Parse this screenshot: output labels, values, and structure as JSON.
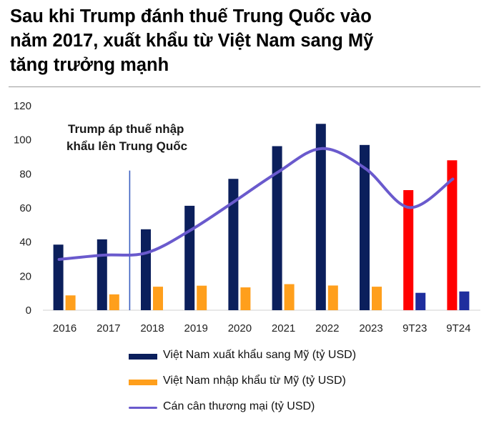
{
  "title_lines": [
    "Sau khi Trump đánh thuế Trung Quốc vào",
    "năm 2017, xuất khẩu từ Việt Nam sang Mỹ",
    "tăng trưởng mạnh"
  ],
  "annotation_lines": [
    "Trump áp thuế nhập",
    "khẩu lên Trung Quốc"
  ],
  "legend": [
    "Việt Nam xuất khẩu sang Mỹ (tỷ USD)",
    "Việt Nam nhập khẩu từ Mỹ (tỷ USD)",
    "Cán cân thương mại (tỷ USD)"
  ],
  "colors": {
    "export": "#0b1f5c",
    "export_highlight": "#ff0000",
    "import": "#ff9f1c",
    "import_highlight": "#1f2e9e",
    "balance": "#6a5acd",
    "marker": "#3b5fc0"
  },
  "chart_data": {
    "type": "bar",
    "title": "Sau khi Trump đánh thuế Trung Quốc vào năm 2017, xuất khẩu từ Việt Nam sang Mỹ tăng trưởng mạnh",
    "categories": [
      "2016",
      "2017",
      "2018",
      "2019",
      "2020",
      "2021",
      "2022",
      "2023",
      "9T23",
      "9T24"
    ],
    "ylim": [
      0,
      120
    ],
    "yticks": [
      0,
      20,
      40,
      60,
      80,
      100,
      120
    ],
    "grid": false,
    "legend_position": "bottom",
    "highlight_categories": [
      "9T23",
      "9T24"
    ],
    "marker_between": [
      "2017",
      "2018"
    ],
    "series": [
      {
        "name": "Việt Nam xuất khẩu sang Mỹ (tỷ USD)",
        "type": "bar",
        "values": [
          38.5,
          41.6,
          47.5,
          61.3,
          77.1,
          96.3,
          109.4,
          97.0,
          70.5,
          88.0
        ]
      },
      {
        "name": "Việt Nam nhập khẩu từ Mỹ (tỷ USD)",
        "type": "bar",
        "values": [
          8.7,
          9.3,
          13.8,
          14.4,
          13.4,
          15.3,
          14.5,
          13.8,
          10.2,
          11.0
        ]
      },
      {
        "name": "Cán cân thương mại (tỷ USD)",
        "type": "line",
        "values": [
          29.8,
          32.3,
          33.7,
          46.9,
          63.7,
          81.0,
          94.9,
          83.2,
          60.3,
          77.0
        ]
      }
    ]
  }
}
